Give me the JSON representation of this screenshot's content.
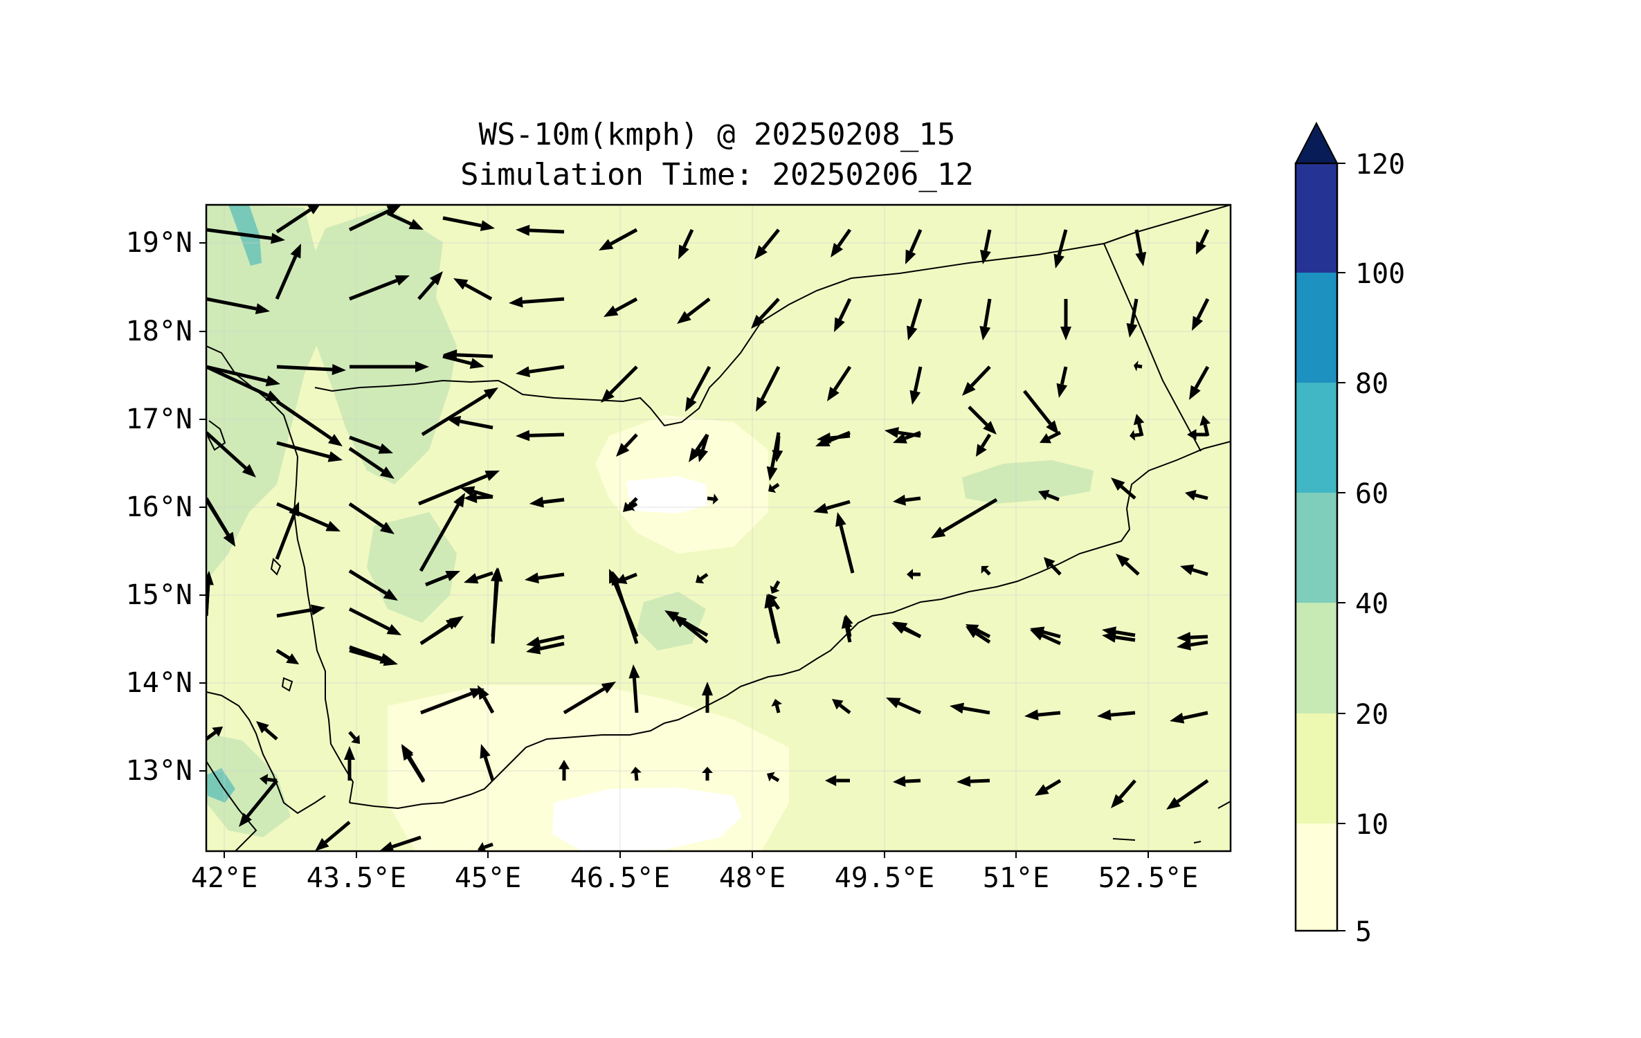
{
  "title": {
    "line1": "WS-10m(kmph) @ 20250208_15",
    "line2": "Simulation Time: 20250206_12"
  },
  "map": {
    "lon_range": [
      41.8,
      53.45
    ],
    "lat_range": [
      12.05,
      19.4
    ],
    "x_tick_values": [
      42,
      43.5,
      45,
      46.5,
      48,
      49.5,
      51,
      52.5
    ],
    "x_tick_labels": [
      "42°E",
      "43.5°E",
      "45°E",
      "46.5°E",
      "48°E",
      "49.5°E",
      "51°E",
      "52.5°E"
    ],
    "y_tick_values": [
      19,
      18,
      17,
      16,
      15,
      14,
      13
    ],
    "y_tick_labels": [
      "19°N",
      "18°N",
      "17°N",
      "16°N",
      "15°N",
      "14°N",
      "13°N"
    ],
    "gridlines": true
  },
  "colorbar": {
    "levels": [
      5,
      10,
      20,
      40,
      60,
      80,
      100,
      120
    ],
    "labels": [
      "5",
      "10",
      "20",
      "40",
      "60",
      "80",
      "100",
      "120"
    ],
    "colors": [
      "#ffffd9",
      "#edf8b1",
      "#c7e9b4",
      "#7fcdbb",
      "#41b6c4",
      "#1d91c0",
      "#225ea8",
      "#253494"
    ],
    "extend_color": "#081d58",
    "extend": "max"
  }
}
